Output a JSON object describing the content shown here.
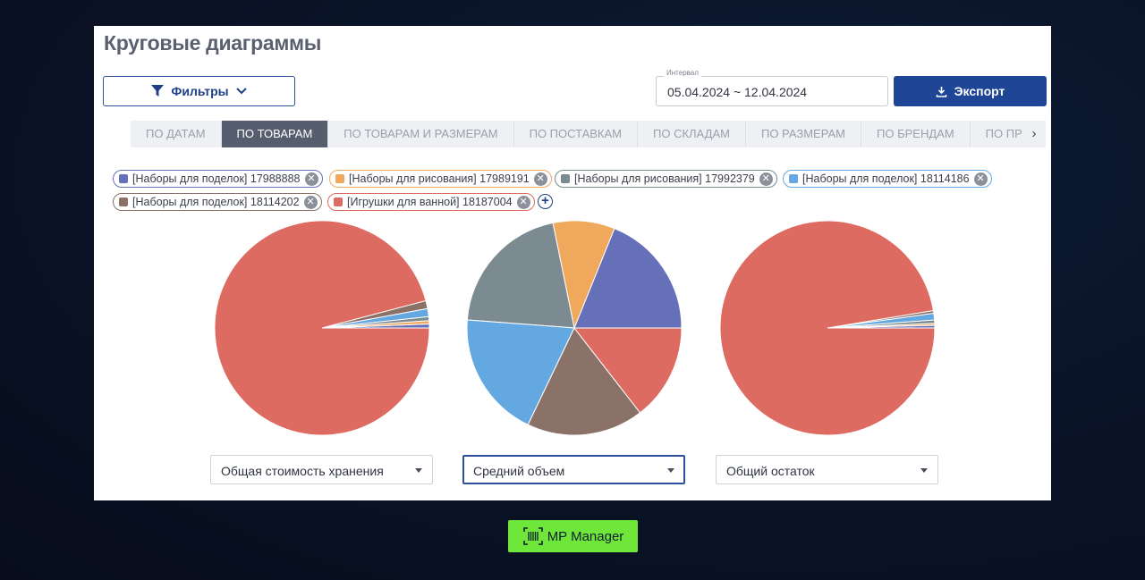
{
  "page": {
    "title": "Круговые диаграммы"
  },
  "toolbar": {
    "filters_label": "Фильтры",
    "interval_label": "Интервал",
    "interval_value": "05.04.2024 ~ 12.04.2024",
    "export_label": "Экспорт"
  },
  "tabs": [
    {
      "label": "ПО ДАТАМ",
      "active": false
    },
    {
      "label": "ПО ТОВАРАМ",
      "active": true
    },
    {
      "label": "ПО ТОВАРАМ И РАЗМЕРАМ",
      "active": false
    },
    {
      "label": "ПО ПОСТАВКАМ",
      "active": false
    },
    {
      "label": "ПО СКЛАДАМ",
      "active": false
    },
    {
      "label": "ПО РАЗМЕРАМ",
      "active": false
    },
    {
      "label": "ПО БРЕНДАМ",
      "active": false
    },
    {
      "label": "ПО ПРЕДМ",
      "active": false
    }
  ],
  "tabs_next_icon": "chevron-right-icon",
  "chips": [
    {
      "label": "[Наборы для поделок] 17988888",
      "color": "#6570b9"
    },
    {
      "label": "[Наборы для рисования] 17989191",
      "color": "#f0a85d"
    },
    {
      "label": "[Наборы для рисования] 17992379",
      "color": "#7c8a92"
    },
    {
      "label": "[Наборы для поделок] 18114186",
      "color": "#64a8e2"
    },
    {
      "label": "[Наборы для поделок] 18114202",
      "color": "#8a7268"
    },
    {
      "label": "[Игрушки для ванной] 18187004",
      "color": "#dd6b62"
    }
  ],
  "chart_data": [
    {
      "type": "pie",
      "title": "",
      "selected_metric": "Общая стоимость хранения",
      "categories": [
        "[Наборы для поделок] 17988888",
        "[Наборы для рисования] 17989191",
        "[Наборы для рисования] 17992379",
        "[Наборы для поделок] 18114186",
        "[Наборы для поделок] 18114202",
        "[Игрушки для ванной] 18187004"
      ],
      "values": [
        0.6,
        0.5,
        0.6,
        1.2,
        1.2,
        95.9
      ]
    },
    {
      "type": "pie",
      "title": "",
      "selected_metric": "Средний объем",
      "categories": [
        "[Наборы для поделок] 17988888",
        "[Наборы для рисования] 17989191",
        "[Наборы для рисования] 17992379",
        "[Наборы для поделок] 18114186",
        "[Наборы для поделок] 18114202",
        "[Игрушки для ванной] 18187004"
      ],
      "values": [
        18.9,
        9.3,
        20.6,
        19.1,
        17.6,
        14.5
      ]
    },
    {
      "type": "pie",
      "title": "",
      "selected_metric": "Общий остаток",
      "categories": [
        "[Наборы для поделок] 17988888",
        "[Наборы для рисования] 17989191",
        "[Наборы для рисования] 17992379",
        "[Наборы для поделок] 18114186",
        "[Наборы для поделок] 18114202",
        "[Игрушки для ванной] 18187004"
      ],
      "values": [
        0.4,
        0.3,
        0.5,
        1.0,
        0.4,
        97.4
      ]
    }
  ],
  "selects": [
    {
      "value": "Общая стоимость хранения",
      "focused": false
    },
    {
      "value": "Средний объем",
      "focused": true
    },
    {
      "value": "Общий остаток",
      "focused": false
    }
  ],
  "brand": {
    "label": "MP Manager",
    "color": "#6ee73a"
  }
}
